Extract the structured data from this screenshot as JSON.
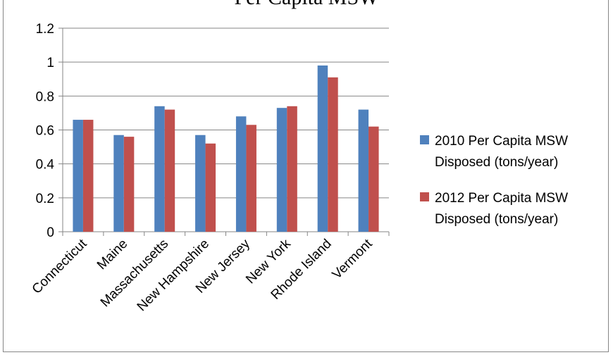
{
  "chart_data": {
    "type": "bar",
    "title": "Per Capita MSW",
    "categories": [
      "Connecticut",
      "Maine",
      "Massachusetts",
      "New Hampshire",
      "New Jersey",
      "New York",
      "Rhode Island",
      "Vermont"
    ],
    "series": [
      {
        "name": "2010 Per Capita MSW Disposed (tons/year)",
        "name_lines": [
          "2010 Per Capita MSW",
          "Disposed (tons/year)"
        ],
        "color": "#4F81BD",
        "values": [
          0.66,
          0.57,
          0.74,
          0.57,
          0.68,
          0.73,
          0.98,
          0.72
        ]
      },
      {
        "name": "2012 Per Capita MSW Disposed (tons/year)",
        "name_lines": [
          "2012 Per Capita MSW",
          "Disposed (tons/year)"
        ],
        "color": "#C0504D",
        "values": [
          0.66,
          0.56,
          0.72,
          0.52,
          0.63,
          0.74,
          0.91,
          0.62
        ]
      }
    ],
    "ylim": [
      0,
      1.2
    ],
    "yticks": [
      "0",
      "0.2",
      "0.4",
      "0.6",
      "0.8",
      "1",
      "1.2"
    ],
    "grid": true,
    "legend": "right",
    "xlabel": "",
    "ylabel": ""
  }
}
